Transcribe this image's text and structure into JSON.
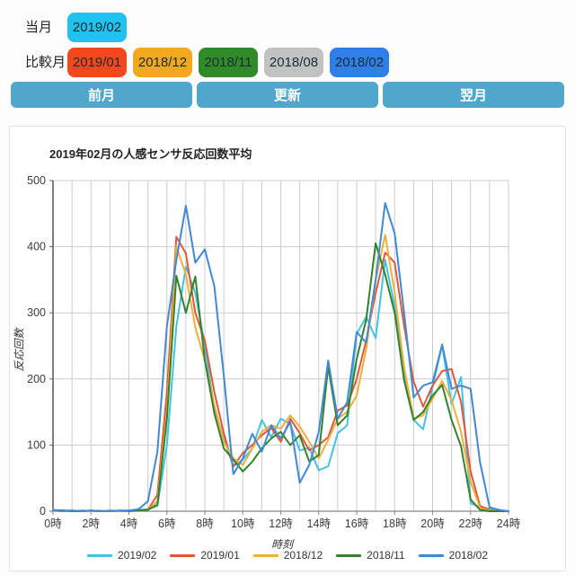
{
  "controls": {
    "current_month_label": "当月　：",
    "current_month": {
      "label": "2019/02",
      "color": "#1fc2f0"
    },
    "compare_label": "比較月：",
    "compare_months": [
      {
        "label": "2019/01",
        "color": "#f2481c"
      },
      {
        "label": "2018/12",
        "color": "#f2a821"
      },
      {
        "label": "2018/11",
        "color": "#2f8a28"
      },
      {
        "label": "2018/08",
        "color": "#c2c2c2"
      },
      {
        "label": "2018/02",
        "color": "#2e7fe8"
      }
    ],
    "nav_button_color": "#4fa7cb",
    "nav_buttons": [
      {
        "label": "前月"
      },
      {
        "label": "更新"
      },
      {
        "label": "翌月"
      }
    ]
  },
  "chart_data": {
    "type": "line",
    "title": "2019年02月の人感センサ反応回数平均",
    "xlabel": "時刻",
    "ylabel": "反応回数",
    "xlim": [
      0,
      24
    ],
    "ylim": [
      0,
      500
    ],
    "x_start_hour": 0,
    "x_step_hours": 0.5,
    "x_ticks": [
      "0時",
      "2時",
      "4時",
      "6時",
      "8時",
      "10時",
      "12時",
      "14時",
      "16時",
      "18時",
      "20時",
      "22時",
      "24時"
    ],
    "y_ticks": [
      0,
      100,
      200,
      300,
      400,
      500
    ],
    "grid": true,
    "grid_color": "#cccccc",
    "legend_position": "bottom",
    "series": [
      {
        "name": "2019/02",
        "color": "#45c2e2",
        "values": [
          2,
          1,
          1,
          0,
          1,
          0,
          0,
          0,
          1,
          2,
          3,
          8,
          100,
          280,
          370,
          330,
          250,
          155,
          110,
          68,
          78,
          95,
          138,
          112,
          140,
          132,
          92,
          96,
          62,
          68,
          118,
          130,
          268,
          294,
          262,
          380,
          310,
          205,
          138,
          124,
          188,
          251,
          162,
          203,
          12,
          6,
          4,
          1,
          0
        ]
      },
      {
        "name": "2019/01",
        "color": "#e2573c",
        "values": [
          1,
          1,
          0,
          1,
          0,
          0,
          1,
          0,
          1,
          1,
          2,
          25,
          180,
          415,
          390,
          300,
          258,
          180,
          118,
          68,
          88,
          100,
          115,
          126,
          105,
          140,
          118,
          92,
          100,
          112,
          152,
          160,
          200,
          258,
          330,
          391,
          376,
          280,
          196,
          158,
          190,
          212,
          215,
          165,
          60,
          8,
          2,
          1,
          0
        ]
      },
      {
        "name": "2018/12",
        "color": "#eeaf3c",
        "values": [
          1,
          0,
          1,
          0,
          0,
          1,
          0,
          0,
          1,
          1,
          2,
          15,
          150,
          400,
          358,
          278,
          228,
          160,
          105,
          80,
          70,
          95,
          120,
          130,
          125,
          145,
          128,
          105,
          80,
          108,
          140,
          150,
          175,
          245,
          350,
          418,
          330,
          218,
          140,
          145,
          170,
          197,
          168,
          120,
          45,
          5,
          1,
          0,
          0
        ]
      },
      {
        "name": "2018/11",
        "color": "#33822c",
        "values": [
          1,
          1,
          0,
          0,
          1,
          0,
          0,
          1,
          0,
          1,
          2,
          10,
          140,
          356,
          300,
          355,
          228,
          148,
          95,
          78,
          60,
          75,
          95,
          110,
          120,
          100,
          115,
          75,
          85,
          219,
          130,
          145,
          230,
          290,
          405,
          358,
          300,
          198,
          138,
          150,
          175,
          191,
          138,
          98,
          18,
          2,
          0,
          0,
          0
        ]
      },
      {
        "name": "2018/02",
        "color": "#4289d5",
        "values": [
          1,
          0,
          1,
          0,
          1,
          0,
          0,
          1,
          1,
          3,
          15,
          90,
          280,
          380,
          462,
          376,
          396,
          340,
          205,
          56,
          80,
          117,
          90,
          130,
          110,
          135,
          43,
          70,
          120,
          228,
          140,
          165,
          271,
          255,
          350,
          466,
          420,
          300,
          172,
          190,
          195,
          252,
          185,
          190,
          185,
          74,
          6,
          2,
          0
        ]
      }
    ]
  }
}
